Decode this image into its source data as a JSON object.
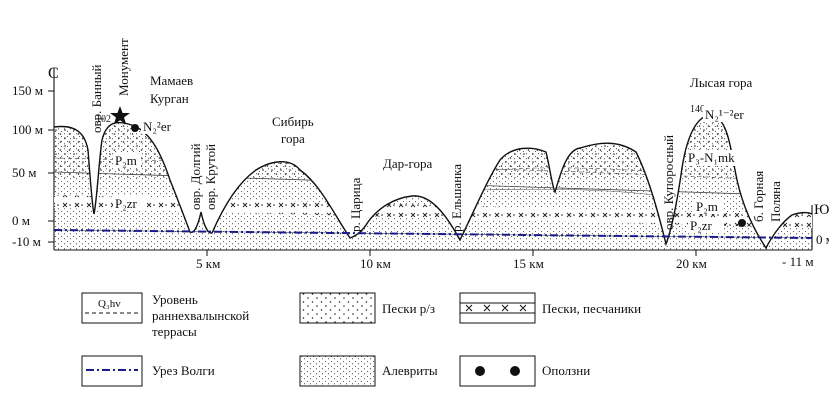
{
  "profile": {
    "north_label": "С",
    "south_label": "Ю",
    "y_axis_labels": [
      "150 м",
      "100 м",
      "50 м",
      "0 м",
      "-10 м"
    ],
    "right_axis_labels": [
      "0 м",
      "- 11 м"
    ],
    "x_axis_labels": [
      "5 км",
      "10 км",
      "15 км",
      "20 км"
    ],
    "place_names": {
      "banny": "овр. Банный",
      "monument": "Монумент",
      "mamaev": "Мамаев",
      "kurgan": "Курган",
      "dolgy": "овр. Долгий",
      "krutoy": "овр. Крутой",
      "sibir": "Сибирь",
      "gora": "гора",
      "tsaritsa": "р. Царица",
      "dargora": "Дар-гора",
      "elshanka": "р. Ельшанка",
      "kuporosny": "овр. Купоросный",
      "lysaya": "Лысая гора",
      "gornaya": "б. Горная",
      "polyana": "Поляна"
    },
    "elevations": {
      "mamaev": "102",
      "lysaya": "140"
    },
    "strata_labels": {
      "n2er_left": "N₂²er",
      "pm_left": "P₂m",
      "pzr_left": "P₂zr",
      "n2er_right": "N₂¹⁻²er",
      "pnmk": "P₃-N₁mk",
      "pm_right": "P₂m",
      "pzr_right": "P₂zr"
    }
  },
  "legend": {
    "terrace_symbol": "Q₃hv",
    "terrace_label_1": "Уровень",
    "terrace_label_2": "раннехвалынской",
    "terrace_label_3": "террасы",
    "sand_rz": "Пески р/з",
    "sands_sandstones": "Пески, песчаники",
    "volga": "Урез Волги",
    "silts": "Алевриты",
    "landslides": "Оползни"
  },
  "colors": {
    "line": "#111111",
    "volga": "#1a1a8c"
  }
}
